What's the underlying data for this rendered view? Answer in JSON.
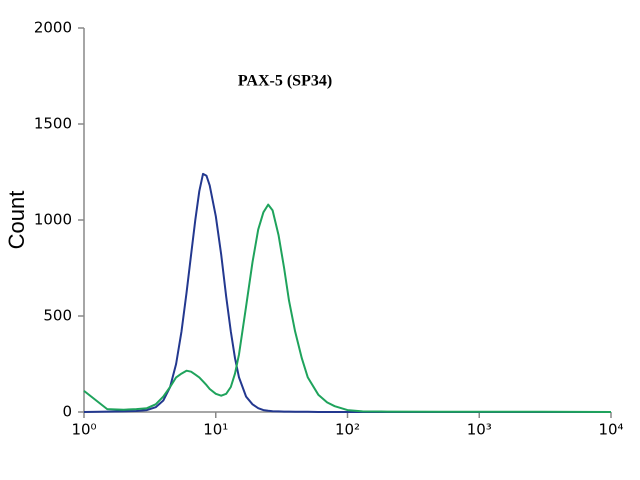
{
  "chart_data": {
    "type": "line",
    "title": "PAX-5 (SP34)",
    "y_label": "Count",
    "x_scale": "log",
    "x": [
      1,
      1.5,
      2,
      2.5,
      3,
      3.5,
      4,
      4.5,
      5,
      5.5,
      6,
      6.5,
      7,
      7.5,
      8,
      8.5,
      9,
      10,
      11,
      12,
      13,
      14,
      15,
      17,
      19,
      21,
      23,
      25,
      27,
      30,
      33,
      36,
      40,
      45,
      50,
      60,
      70,
      80,
      100,
      130,
      200,
      500,
      1000,
      3000,
      10000
    ],
    "series": [
      {
        "color": "#23388f",
        "values": [
          0,
          2,
          3,
          5,
          10,
          25,
          60,
          130,
          250,
          420,
          620,
          820,
          1000,
          1150,
          1240,
          1230,
          1180,
          1020,
          820,
          600,
          420,
          280,
          180,
          80,
          40,
          20,
          10,
          6,
          4,
          3,
          2,
          2,
          1,
          1,
          1,
          0,
          0,
          0,
          0,
          0,
          0,
          0,
          0,
          0,
          0
        ]
      },
      {
        "color": "#1fa35c",
        "values": [
          110,
          15,
          12,
          15,
          20,
          40,
          80,
          130,
          180,
          200,
          215,
          210,
          195,
          180,
          160,
          140,
          120,
          95,
          85,
          95,
          130,
          200,
          300,
          550,
          780,
          950,
          1040,
          1080,
          1050,
          920,
          750,
          580,
          420,
          280,
          180,
          90,
          50,
          30,
          10,
          3,
          2,
          1,
          1,
          1,
          0
        ]
      }
    ],
    "xlim": [
      1,
      10000
    ],
    "xticks": [
      {
        "value": 1,
        "label": "10⁰"
      },
      {
        "value": 10,
        "label": "10¹"
      },
      {
        "value": 100,
        "label": "10²"
      },
      {
        "value": 1000,
        "label": "10³"
      },
      {
        "value": 10000,
        "label": "10⁴"
      }
    ],
    "ylim": [
      0,
      2000
    ],
    "yticks": [
      0,
      500,
      1000,
      1500,
      2000
    ]
  }
}
